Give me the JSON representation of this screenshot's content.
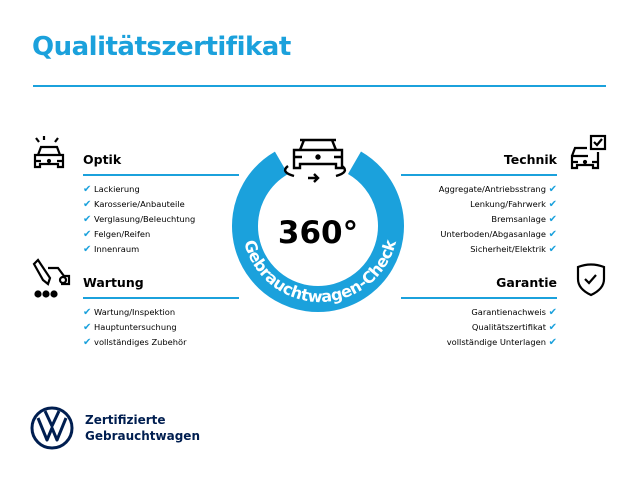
{
  "title": "Qualitätszertifikat",
  "center": {
    "big": "360°",
    "arc_text": "Gebrauchtwagen-Check"
  },
  "sections": {
    "optik": {
      "heading": "Optik",
      "items": [
        "Lackierung",
        "Karosserie/Anbauteile",
        "Verglasung/Beleuchtung",
        "Felgen/Reifen",
        "Innenraum"
      ]
    },
    "wartung": {
      "heading": "Wartung",
      "items": [
        "Wartung/Inspektion",
        "Hauptuntersuchung",
        "vollständiges Zubehör"
      ]
    },
    "technik": {
      "heading": "Technik",
      "items": [
        "Aggregate/Antriebsstrang",
        "Lenkung/Fahrwerk",
        "Bremsanlage",
        "Unterboden/Abgasanlage",
        "Sicherheit/Elektrik"
      ]
    },
    "garantie": {
      "heading": "Garantie",
      "items": [
        "Garantienachweis",
        "Qualitätszertifikat",
        "vollständige Unterlagen"
      ]
    }
  },
  "check_glyph": "✔",
  "logo": {
    "line1": "Zertifizierte",
    "line2": "Gebrauchtwagen",
    "mark": "VW"
  },
  "colors": {
    "accent": "#1ba1dc",
    "brand_navy": "#001e50"
  },
  "icons": [
    "car-lights-icon",
    "maintenance-icon",
    "car-check-icon",
    "shield-check-icon",
    "car-360-icon"
  ]
}
